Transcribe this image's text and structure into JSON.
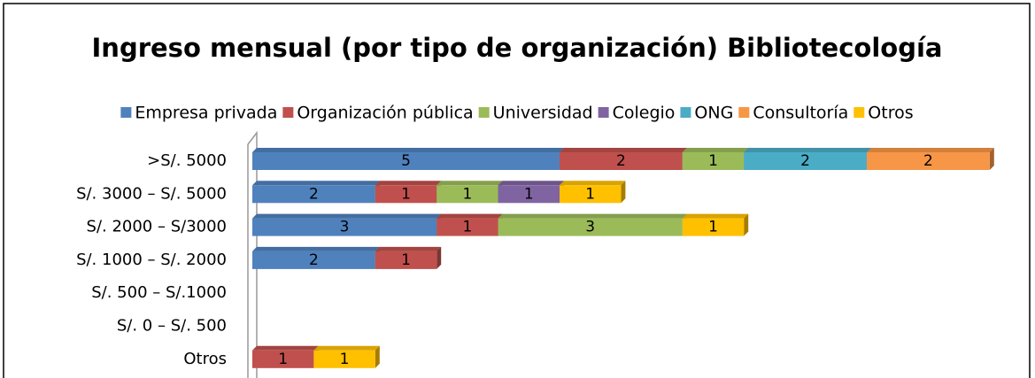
{
  "chart_data": {
    "type": "bar",
    "orientation": "horizontal",
    "stacked": true,
    "title": "Ingreso mensual (por tipo de organización) Bibliotecología",
    "categories": [
      ">S/. 5000",
      "S/. 3000 – S/. 5000",
      "S/. 2000 – S/3000",
      "S/. 1000 – S/. 2000",
      "S/. 500 – S/.1000",
      "S/. 0 – S/. 500",
      "Otros"
    ],
    "series": [
      {
        "name": "Empresa privada",
        "color": "#4f81bd",
        "values": [
          5,
          2,
          3,
          2,
          null,
          null,
          null
        ]
      },
      {
        "name": "Organización pública",
        "color": "#c0504d",
        "values": [
          2,
          1,
          1,
          1,
          null,
          null,
          1
        ]
      },
      {
        "name": "Universidad",
        "color": "#9bbb59",
        "values": [
          1,
          1,
          3,
          null,
          null,
          null,
          null
        ]
      },
      {
        "name": "Colegio",
        "color": "#8064a2",
        "values": [
          null,
          1,
          null,
          null,
          null,
          null,
          null
        ]
      },
      {
        "name": "ONG",
        "color": "#4bacc6",
        "values": [
          2,
          null,
          null,
          null,
          null,
          null,
          null
        ]
      },
      {
        "name": "Consultoría",
        "color": "#f79646",
        "values": [
          2,
          null,
          null,
          null,
          null,
          null,
          null
        ]
      },
      {
        "name": "Otros",
        "color": "#ffc000",
        "values": [
          null,
          1,
          1,
          null,
          null,
          null,
          1
        ]
      }
    ],
    "legend": "top"
  }
}
